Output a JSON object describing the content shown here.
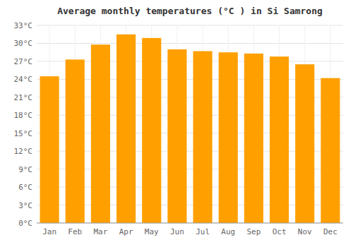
{
  "chart_data": {
    "type": "bar",
    "title": "Average monthly temperatures (°C ) in Si Samrong",
    "categories": [
      "Jan",
      "Feb",
      "Mar",
      "Apr",
      "May",
      "Jun",
      "Jul",
      "Aug",
      "Sep",
      "Oct",
      "Nov",
      "Dec"
    ],
    "values": [
      24.5,
      27.3,
      29.8,
      31.5,
      30.9,
      29.0,
      28.7,
      28.5,
      28.3,
      27.8,
      26.5,
      24.2
    ],
    "color": "#FFA000",
    "ylim": [
      0,
      33
    ],
    "yticks": [
      {
        "value": 0,
        "label": "0°C"
      },
      {
        "value": 3,
        "label": "3°C"
      },
      {
        "value": 6,
        "label": "6°C"
      },
      {
        "value": 9,
        "label": "9°C"
      },
      {
        "value": 12,
        "label": "12°C"
      },
      {
        "value": 15,
        "label": "15°C"
      },
      {
        "value": 18,
        "label": "18°C"
      },
      {
        "value": 21,
        "label": "21°C"
      },
      {
        "value": 24,
        "label": "24°C"
      },
      {
        "value": 27,
        "label": "27°C"
      },
      {
        "value": 30,
        "label": "30°C"
      },
      {
        "value": 33,
        "label": "33°C"
      }
    ],
    "grid": true
  }
}
